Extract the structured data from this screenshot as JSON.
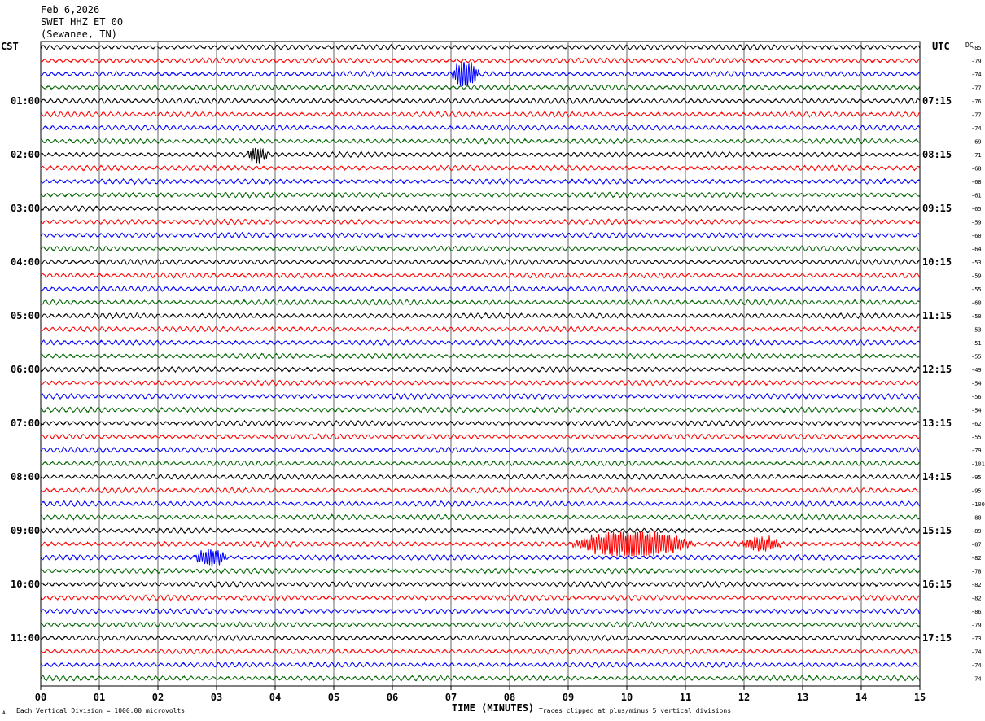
{
  "header": {
    "date": "Feb 6,2026",
    "station": "SWET HHZ ET 00",
    "location": "(Sewanee, TN)"
  },
  "axes_labels": {
    "left_timezone": "CST",
    "right_timezone": "UTC",
    "dc_label": "DC",
    "x_title": "TIME (MINUTES)",
    "footer_left": "Each Vertical Division = 1000.00 microvolts",
    "footer_right": "Traces clipped at plus/minus 5 vertical divisions",
    "footer_mark": "A"
  },
  "colors": {
    "trace_cycle": [
      "#000000",
      "#ff0000",
      "#0000ff",
      "#006400"
    ],
    "grid": "#000000",
    "background": "#ffffff"
  },
  "chart_data": {
    "type": "line",
    "title": "SWET HHZ ET 00",
    "xlabel": "TIME (MINUTES)",
    "xlim": [
      0,
      15
    ],
    "x_ticks": [
      "00",
      "01",
      "02",
      "03",
      "04",
      "05",
      "06",
      "07",
      "08",
      "09",
      "10",
      "11",
      "12",
      "13",
      "14",
      "15"
    ],
    "rows_per_hour": 4,
    "row_count": 48,
    "left_hour_labels": [
      "01:00",
      "02:00",
      "03:00",
      "04:00",
      "05:00",
      "06:00",
      "07:00",
      "08:00",
      "09:00",
      "10:00",
      "11:00"
    ],
    "right_hour_labels": [
      "07:15",
      "08:15",
      "09:15",
      "10:15",
      "11:15",
      "12:15",
      "13:15",
      "14:15",
      "15:15",
      "16:15",
      "17:15"
    ],
    "dc_offsets": [
      "-85",
      "-79",
      "-74",
      "-77",
      "-76",
      "-77",
      "-74",
      "-69",
      "-71",
      "-68",
      "-68",
      "-61",
      "-65",
      "-59",
      "-60",
      "-64",
      "-53",
      "-59",
      "-55",
      "-60",
      "-50",
      "-53",
      "-51",
      "-55",
      "-49",
      "-54",
      "-56",
      "-54",
      "-62",
      "-55",
      "-79",
      "-101",
      "-95",
      "-95",
      "-100",
      "-80",
      "-89",
      "-87",
      "-82",
      "-78",
      "-82",
      "-82",
      "-86",
      "-79",
      "-73",
      "-74",
      "-74",
      "-74"
    ],
    "events": [
      {
        "row": 2,
        "start_min": 7.0,
        "end_min": 7.5,
        "amplitude": 2.6
      },
      {
        "row": 8,
        "start_min": 3.5,
        "end_min": 3.9,
        "amplitude": 1.4
      },
      {
        "row": 37,
        "start_min": 9.0,
        "end_min": 11.2,
        "amplitude": 2.5
      },
      {
        "row": 37,
        "start_min": 11.9,
        "end_min": 12.7,
        "amplitude": 1.3
      },
      {
        "row": 38,
        "start_min": 2.6,
        "end_min": 3.2,
        "amplitude": 1.6
      }
    ],
    "grid": true
  }
}
